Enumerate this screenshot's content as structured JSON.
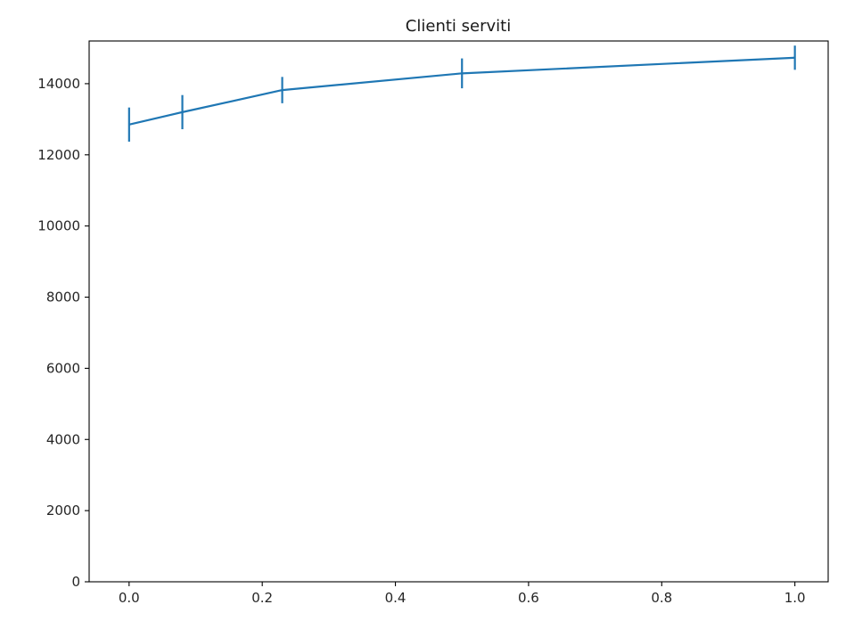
{
  "chart_data": {
    "type": "line",
    "title": "Clienti serviti",
    "xlabel": "",
    "ylabel": "",
    "xlim": [
      -0.06,
      1.05
    ],
    "ylim": [
      0,
      15200
    ],
    "x_ticks": [
      0.0,
      0.2,
      0.4,
      0.6,
      0.8,
      1.0
    ],
    "x_tick_labels": [
      "0.0",
      "0.2",
      "0.4",
      "0.6",
      "0.8",
      "1.0"
    ],
    "y_ticks": [
      0,
      2000,
      4000,
      6000,
      8000,
      10000,
      12000,
      14000
    ],
    "y_tick_labels": [
      "0",
      "2000",
      "4000",
      "6000",
      "8000",
      "10000",
      "12000",
      "14000"
    ],
    "grid": false,
    "legend": "none",
    "series": [
      {
        "color": "#1f77b4",
        "points": [
          {
            "x": 0.0,
            "y": 12850,
            "err": 480
          },
          {
            "x": 0.08,
            "y": 13200,
            "err": 480
          },
          {
            "x": 0.23,
            "y": 13820,
            "err": 370
          },
          {
            "x": 0.5,
            "y": 14290,
            "err": 420
          },
          {
            "x": 1.0,
            "y": 14730,
            "err": 340
          }
        ]
      }
    ]
  }
}
